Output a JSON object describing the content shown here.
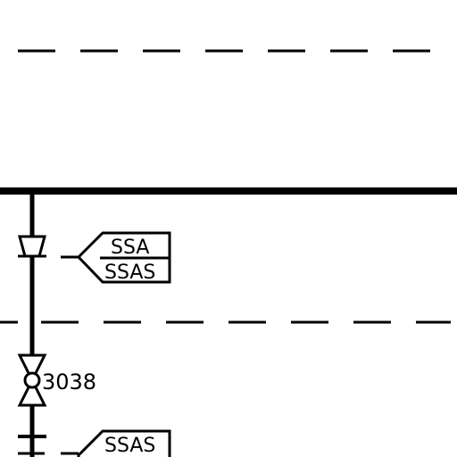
{
  "diagram": {
    "colors": {
      "line": "#000000",
      "background": "#ffffff"
    },
    "tags": {
      "instrument_upper_top": "SSA",
      "instrument_upper_bottom": "SSAS",
      "valve_number": "3038",
      "instrument_lower": "SSAS"
    }
  }
}
